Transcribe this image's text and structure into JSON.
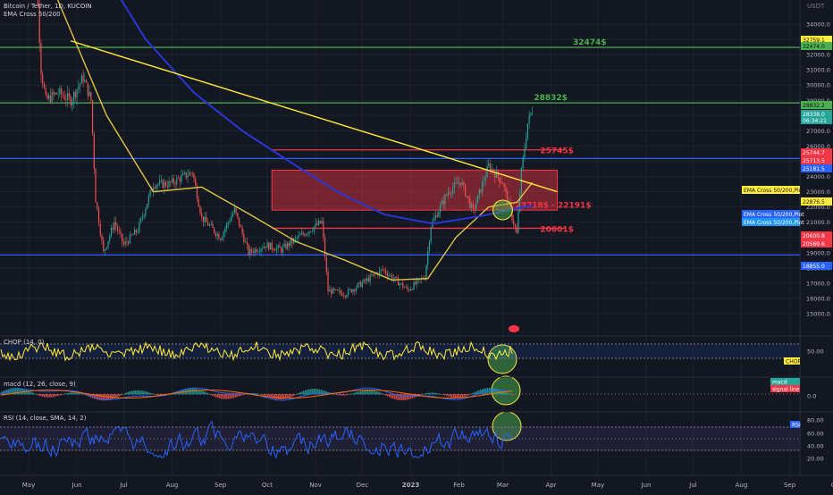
{
  "header": {
    "symbol": "Bitcoin / Tether, 1D, KUCOIN",
    "indicator": "EMA Cross 50/200",
    "currency": "USDT"
  },
  "chart_data": {
    "type": "candlestick",
    "x_ticks": [
      "May",
      "Jun",
      "Jul",
      "Aug",
      "Sep",
      "Oct",
      "Nov",
      "Dec",
      "2023",
      "Feb",
      "Mar",
      "Apr",
      "May",
      "Jun",
      "Jul",
      "Aug",
      "Sep",
      "Oct"
    ],
    "y_ticks": [
      15000,
      16000,
      17000,
      18000,
      19000,
      20000,
      21000,
      22000,
      23000,
      24000,
      25000,
      26000,
      27000,
      28000,
      29000,
      30000,
      31000,
      32000,
      33000,
      34000
    ],
    "price_path": [
      [
        "2022-05-01",
        38000
      ],
      [
        "2022-05-05",
        39500
      ],
      [
        "2022-05-09",
        31000
      ],
      [
        "2022-05-12",
        29000
      ],
      [
        "2022-05-20",
        29500
      ],
      [
        "2022-05-28",
        29000
      ],
      [
        "2022-06-05",
        30500
      ],
      [
        "2022-06-10",
        29000
      ],
      [
        "2022-06-13",
        22500
      ],
      [
        "2022-06-18",
        19000
      ],
      [
        "2022-06-25",
        21000
      ],
      [
        "2022-07-01",
        19500
      ],
      [
        "2022-07-10",
        20500
      ],
      [
        "2022-07-20",
        23500
      ],
      [
        "2022-07-30",
        23500
      ],
      [
        "2022-08-14",
        24300
      ],
      [
        "2022-08-20",
        21300
      ],
      [
        "2022-09-01",
        20000
      ],
      [
        "2022-09-10",
        21800
      ],
      [
        "2022-09-19",
        19000
      ],
      [
        "2022-09-30",
        19500
      ],
      [
        "2022-10-10",
        19200
      ],
      [
        "2022-10-25",
        20300
      ],
      [
        "2022-11-05",
        21000
      ],
      [
        "2022-11-09",
        16500
      ],
      [
        "2022-11-20",
        16300
      ],
      [
        "2022-12-01",
        17000
      ],
      [
        "2022-12-14",
        17900
      ],
      [
        "2022-12-30",
        16550
      ],
      [
        "2023-01-10",
        17400
      ],
      [
        "2023-01-14",
        20800
      ],
      [
        "2023-01-25",
        23000
      ],
      [
        "2023-02-02",
        23700
      ],
      [
        "2023-02-10",
        21700
      ],
      [
        "2023-02-20",
        24700
      ],
      [
        "2023-03-01",
        23600
      ],
      [
        "2023-03-10",
        20200
      ],
      [
        "2023-03-13",
        24300
      ],
      [
        "2023-03-17",
        27500
      ],
      [
        "2023-03-20",
        28400
      ]
    ],
    "series": [
      {
        "name": "EMA 50",
        "color": "#e0c341",
        "values": [
          [
            "2022-05-01",
            41000
          ],
          [
            "2022-05-20",
            35500
          ],
          [
            "2022-06-20",
            28000
          ],
          [
            "2022-07-20",
            23000
          ],
          [
            "2022-08-20",
            23300
          ],
          [
            "2022-09-20",
            21500
          ],
          [
            "2022-10-20",
            19700
          ],
          [
            "2022-11-20",
            18500
          ],
          [
            "2022-12-20",
            17200
          ],
          [
            "2023-01-12",
            17300
          ],
          [
            "2023-01-30",
            20000
          ],
          [
            "2023-02-20",
            22000
          ],
          [
            "2023-03-10",
            22300
          ],
          [
            "2023-03-20",
            23600
          ]
        ]
      },
      {
        "name": "EMA 200",
        "color": "#2936d6",
        "values": [
          [
            "2022-05-15",
            44500
          ],
          [
            "2022-06-15",
            38000
          ],
          [
            "2022-07-15",
            33000
          ],
          [
            "2022-08-15",
            29500
          ],
          [
            "2022-09-15",
            27000
          ],
          [
            "2022-10-15",
            25000
          ],
          [
            "2022-11-15",
            23000
          ],
          [
            "2022-12-15",
            21500
          ],
          [
            "2023-01-15",
            20900
          ],
          [
            "2023-02-15",
            21400
          ],
          [
            "2023-03-20",
            22100
          ]
        ]
      }
    ],
    "levels": [
      {
        "price": 32474,
        "label": "32474$",
        "color": "#4caf50"
      },
      {
        "price": 28832,
        "label": "28832$",
        "color": "#4caf50"
      },
      {
        "price": 25745,
        "label": "25745$",
        "color": "#f23645"
      },
      {
        "price": 25181.5,
        "label": "",
        "color": "#2962ff"
      },
      {
        "price": 20601,
        "label": "20601$",
        "color": "#f23645"
      },
      {
        "price": 18855,
        "label": "",
        "color": "#2962ff"
      }
    ],
    "zone": {
      "low": 22191,
      "high": 23718,
      "label": "23718$ - 22191$"
    },
    "trendline": [
      [
        "2022-05-28",
        32900
      ],
      [
        "2023-04-05",
        23000
      ]
    ],
    "price_labels": [
      {
        "value": "32759.1",
        "color": "#ffeb3b"
      },
      {
        "value": "32474.0",
        "color": "#4caf50"
      },
      {
        "value": "28832.2",
        "color": "#4caf50"
      },
      {
        "value": "28338.0",
        "color": "#26a69a"
      },
      {
        "value": "06:34:21",
        "color": "#26a69a"
      },
      {
        "value": "25744.7",
        "color": "#f23645"
      },
      {
        "value": "25713.5",
        "color": "#f23645"
      },
      {
        "value": "25181.5",
        "color": "#2962ff"
      },
      {
        "value": "EMA Cross 50/200,Plot",
        "color": "#ffeb3b"
      },
      {
        "value": "22876.5",
        "color": "#ffeb3b"
      },
      {
        "value": "EMA Cross 50/200,Plot",
        "color": "#2962ff"
      },
      {
        "value": "EMA Cross 50/200,Plot",
        "color": "#2196f3"
      },
      {
        "value": "20600.8",
        "color": "#f23645"
      },
      {
        "value": "20569.6",
        "color": "#f23645"
      },
      {
        "value": "18855.0",
        "color": "#2962ff"
      }
    ],
    "panels": [
      {
        "name": "CHOP (14, 0)",
        "ticks": [
          "50.00"
        ],
        "tag": "CHOP",
        "tag_color": "#ffeb3b"
      },
      {
        "name": "macd (12, 26, close, 9)",
        "ticks": [
          "0.0"
        ],
        "tags": [
          {
            "text": "macd",
            "color": "#26a69a"
          },
          {
            "text": "signal line",
            "color": "#f23645"
          }
        ]
      },
      {
        "name": "RSI (14, close, SMA, 14, 2)",
        "ticks": [
          "80.00",
          "60.00",
          "40.00",
          "20.00"
        ],
        "tag": "RSI",
        "tag_color": "#2962ff"
      }
    ]
  }
}
